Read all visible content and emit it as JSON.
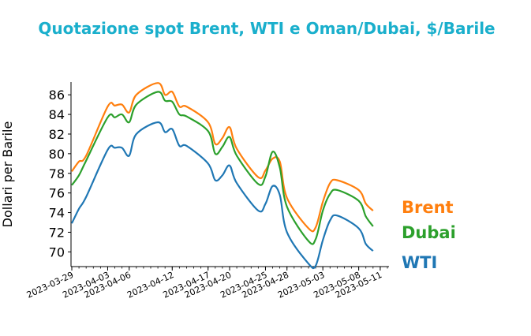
{
  "chart_data": {
    "type": "line",
    "title": "Quotazione spot Brent, WTI e Oman/Dubai, $/Barile",
    "title_color": "#1aafcc",
    "xlabel": "",
    "ylabel": "Dollari per Barile",
    "ylim": [
      68.5,
      87.3
    ],
    "yticks": [
      70,
      72,
      74,
      76,
      78,
      80,
      82,
      84,
      86
    ],
    "grid": false,
    "legend": "direct labels at right end of each series",
    "x": [
      "2023-03-29",
      "2023-03-30",
      "2023-03-31",
      "2023-04-03",
      "2023-04-04",
      "2023-04-05",
      "2023-04-06",
      "2023-04-07",
      "2023-04-10",
      "2023-04-11",
      "2023-04-12",
      "2023-04-13",
      "2023-04-14",
      "2023-04-17",
      "2023-04-18",
      "2023-04-19",
      "2023-04-20",
      "2023-04-21",
      "2023-04-24",
      "2023-04-25",
      "2023-04-26",
      "2023-04-27",
      "2023-04-28",
      "2023-05-01",
      "2023-05-02",
      "2023-05-03",
      "2023-05-04",
      "2023-05-05",
      "2023-05-08",
      "2023-05-09",
      "2023-05-10",
      "2023-05-11",
      "2023-05-12"
    ],
    "xticks": [
      "2023-03-29",
      "2023-04-03",
      "2023-04-06",
      "2023-04-12",
      "2023-04-17",
      "2023-04-20",
      "2023-04-25",
      "2023-04-28",
      "2023-05-03",
      "2023-05-08",
      "2023-05-11"
    ],
    "series": [
      {
        "name": "Brent",
        "color": "#ff7f0e",
        "values": [
          78.2,
          79.2,
          79.8,
          84.8,
          84.9,
          85.0,
          84.2,
          86.0,
          87.2,
          86.0,
          86.3,
          84.8,
          84.8,
          83.2,
          81.0,
          81.6,
          82.7,
          80.5,
          77.6,
          78.3,
          79.5,
          79.2,
          75.5,
          72.4,
          72.5,
          75.1,
          77.0,
          77.3,
          76.3,
          74.9,
          74.2,
          null,
          null
        ]
      },
      {
        "name": "Dubai",
        "color": "#2ca02c",
        "values": [
          76.8,
          77.8,
          79.3,
          83.7,
          83.7,
          84.0,
          83.2,
          85.0,
          86.3,
          85.4,
          85.3,
          84.0,
          83.8,
          82.3,
          80.0,
          80.7,
          81.7,
          79.8,
          76.9,
          77.7,
          80.2,
          78.6,
          74.6,
          71.1,
          71.3,
          74.2,
          75.9,
          76.3,
          75.2,
          73.6,
          72.6,
          null,
          null
        ]
      },
      {
        "name": "WTI",
        "color": "#1f77b4",
        "values": [
          72.9,
          74.4,
          75.6,
          80.4,
          80.6,
          80.6,
          79.8,
          82.0,
          83.2,
          82.2,
          82.5,
          80.8,
          80.8,
          79.0,
          77.3,
          77.8,
          78.8,
          77.0,
          74.2,
          74.9,
          76.7,
          75.8,
          72.0,
          68.8,
          68.6,
          71.2,
          73.2,
          73.7,
          72.4,
          70.8,
          70.1,
          null,
          null
        ]
      }
    ],
    "series_labels": [
      "Brent",
      "Dubai",
      "WTI"
    ]
  }
}
